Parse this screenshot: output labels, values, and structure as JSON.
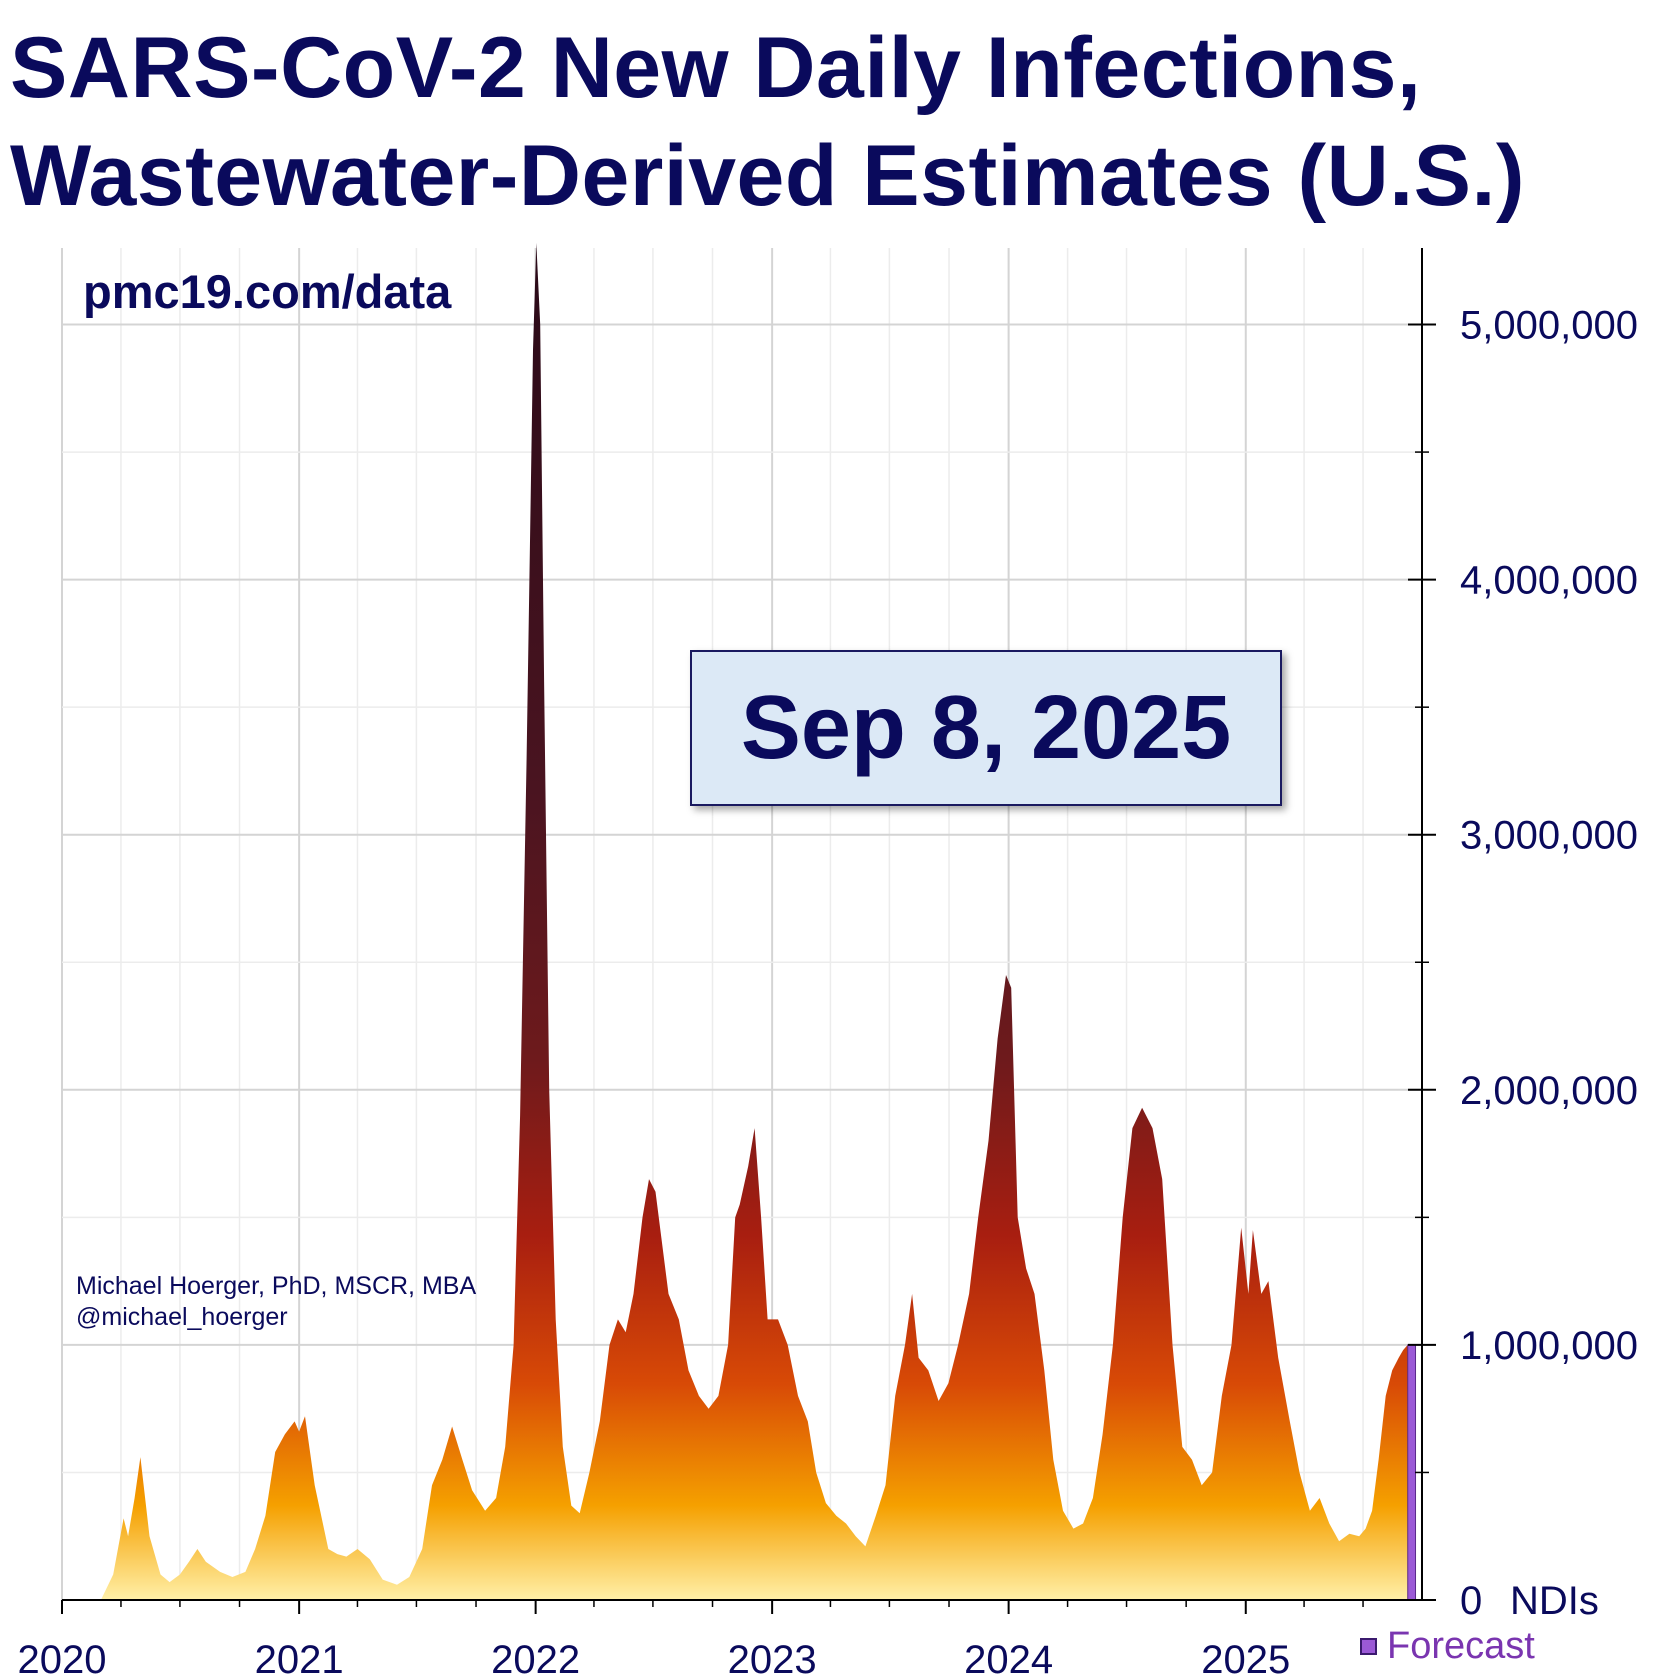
{
  "header": {
    "title_line1": "SARS-CoV-2 New Daily Infections,",
    "title_line2": "Wastewater-Derived Estimates (U.S.)"
  },
  "source_label": "pmc19.com/data",
  "date_label": "Sep 8, 2025",
  "credit": {
    "name": "Michael Hoerger, PhD, MSCR, MBA",
    "handle": "@michael_hoerger"
  },
  "legend": {
    "forecast_label": "Forecast",
    "forecast_color": "#9b59d6"
  },
  "colors": {
    "title": "#0a0a5c",
    "fill_top": "#3d1020",
    "fill_mid": "#c02a0c",
    "fill_low": "#f08a0a",
    "fill_base": "#ffe48a"
  },
  "chart_data": {
    "type": "area",
    "title": "SARS-CoV-2 New Daily Infections, Wastewater-Derived Estimates (U.S.)",
    "xlabel": "",
    "ylabel": "",
    "y_axis_position": "right",
    "y_unit_label": "NDIs",
    "xlim": [
      "2020-01-01",
      "2025-09-30"
    ],
    "ylim": [
      0,
      5300000
    ],
    "x_ticks": [
      {
        "x": "2020-01-01",
        "label": "2020"
      },
      {
        "x": "2021-01-01",
        "label": "2021"
      },
      {
        "x": "2022-01-01",
        "label": "2022"
      },
      {
        "x": "2023-01-01",
        "label": "2023"
      },
      {
        "x": "2024-01-01",
        "label": "2024"
      },
      {
        "x": "2025-01-01",
        "label": "2025"
      }
    ],
    "y_ticks": [
      {
        "y": 0,
        "label": "0"
      },
      {
        "y": 1000000,
        "label": "1,000,000"
      },
      {
        "y": 2000000,
        "label": "2,000,000"
      },
      {
        "y": 3000000,
        "label": "3,000,000"
      },
      {
        "y": 4000000,
        "label": "4,000,000"
      },
      {
        "y": 5000000,
        "label": "5,000,000"
      }
    ],
    "grid": true,
    "series": [
      {
        "points": [
          [
            "2020-03-01",
            0
          ],
          [
            "2020-03-20",
            100000
          ],
          [
            "2020-04-05",
            320000
          ],
          [
            "2020-04-12",
            250000
          ],
          [
            "2020-04-22",
            400000
          ],
          [
            "2020-05-01",
            560000
          ],
          [
            "2020-05-15",
            250000
          ],
          [
            "2020-06-01",
            100000
          ],
          [
            "2020-06-15",
            70000
          ],
          [
            "2020-07-01",
            100000
          ],
          [
            "2020-07-15",
            150000
          ],
          [
            "2020-07-28",
            200000
          ],
          [
            "2020-08-10",
            150000
          ],
          [
            "2020-09-01",
            110000
          ],
          [
            "2020-09-20",
            90000
          ],
          [
            "2020-10-10",
            110000
          ],
          [
            "2020-10-25",
            200000
          ],
          [
            "2020-11-10",
            330000
          ],
          [
            "2020-11-25",
            580000
          ],
          [
            "2020-12-10",
            650000
          ],
          [
            "2020-12-25",
            700000
          ],
          [
            "2021-01-01",
            660000
          ],
          [
            "2021-01-10",
            720000
          ],
          [
            "2021-01-25",
            450000
          ],
          [
            "2021-02-15",
            200000
          ],
          [
            "2021-03-01",
            180000
          ],
          [
            "2021-03-15",
            170000
          ],
          [
            "2021-04-01",
            200000
          ],
          [
            "2021-04-20",
            160000
          ],
          [
            "2021-05-10",
            80000
          ],
          [
            "2021-06-01",
            60000
          ],
          [
            "2021-06-20",
            90000
          ],
          [
            "2021-07-10",
            200000
          ],
          [
            "2021-07-25",
            450000
          ],
          [
            "2021-08-10",
            550000
          ],
          [
            "2021-08-25",
            680000
          ],
          [
            "2021-09-10",
            550000
          ],
          [
            "2021-09-25",
            430000
          ],
          [
            "2021-10-15",
            350000
          ],
          [
            "2021-11-01",
            400000
          ],
          [
            "2021-11-15",
            600000
          ],
          [
            "2021-11-28",
            1000000
          ],
          [
            "2021-12-08",
            1900000
          ],
          [
            "2021-12-18",
            3300000
          ],
          [
            "2021-12-28",
            4900000
          ],
          [
            "2022-01-02",
            5320000
          ],
          [
            "2022-01-08",
            5000000
          ],
          [
            "2022-01-14",
            3600000
          ],
          [
            "2022-01-22",
            2000000
          ],
          [
            "2022-02-01",
            1100000
          ],
          [
            "2022-02-12",
            600000
          ],
          [
            "2022-02-25",
            370000
          ],
          [
            "2022-03-10",
            340000
          ],
          [
            "2022-03-25",
            500000
          ],
          [
            "2022-04-10",
            700000
          ],
          [
            "2022-04-25",
            1000000
          ],
          [
            "2022-05-08",
            1100000
          ],
          [
            "2022-05-20",
            1050000
          ],
          [
            "2022-06-01",
            1200000
          ],
          [
            "2022-06-15",
            1500000
          ],
          [
            "2022-06-25",
            1650000
          ],
          [
            "2022-07-05",
            1600000
          ],
          [
            "2022-07-15",
            1400000
          ],
          [
            "2022-07-25",
            1200000
          ],
          [
            "2022-08-10",
            1100000
          ],
          [
            "2022-08-25",
            900000
          ],
          [
            "2022-09-10",
            800000
          ],
          [
            "2022-09-25",
            750000
          ],
          [
            "2022-10-10",
            800000
          ],
          [
            "2022-10-25",
            1000000
          ],
          [
            "2022-11-05",
            1500000
          ],
          [
            "2022-11-12",
            1550000
          ],
          [
            "2022-11-25",
            1700000
          ],
          [
            "2022-12-05",
            1850000
          ],
          [
            "2022-12-15",
            1500000
          ],
          [
            "2022-12-25",
            1100000
          ],
          [
            "2023-01-10",
            1100000
          ],
          [
            "2023-01-25",
            1000000
          ],
          [
            "2023-02-10",
            800000
          ],
          [
            "2023-02-25",
            700000
          ],
          [
            "2023-03-10",
            500000
          ],
          [
            "2023-03-25",
            380000
          ],
          [
            "2023-04-10",
            330000
          ],
          [
            "2023-04-25",
            300000
          ],
          [
            "2023-05-10",
            250000
          ],
          [
            "2023-05-25",
            210000
          ],
          [
            "2023-06-10",
            330000
          ],
          [
            "2023-06-25",
            450000
          ],
          [
            "2023-07-10",
            800000
          ],
          [
            "2023-07-25",
            1000000
          ],
          [
            "2023-08-05",
            1200000
          ],
          [
            "2023-08-15",
            950000
          ],
          [
            "2023-08-30",
            900000
          ],
          [
            "2023-09-15",
            780000
          ],
          [
            "2023-09-30",
            850000
          ],
          [
            "2023-10-15",
            1000000
          ],
          [
            "2023-11-01",
            1200000
          ],
          [
            "2023-11-15",
            1500000
          ],
          [
            "2023-12-01",
            1800000
          ],
          [
            "2023-12-15",
            2200000
          ],
          [
            "2023-12-28",
            2450000
          ],
          [
            "2024-01-05",
            2400000
          ],
          [
            "2024-01-15",
            1500000
          ],
          [
            "2024-01-28",
            1300000
          ],
          [
            "2024-02-10",
            1200000
          ],
          [
            "2024-02-25",
            900000
          ],
          [
            "2024-03-10",
            550000
          ],
          [
            "2024-03-25",
            350000
          ],
          [
            "2024-04-10",
            280000
          ],
          [
            "2024-04-25",
            300000
          ],
          [
            "2024-05-10",
            400000
          ],
          [
            "2024-05-25",
            650000
          ],
          [
            "2024-06-10",
            1000000
          ],
          [
            "2024-06-25",
            1500000
          ],
          [
            "2024-07-10",
            1850000
          ],
          [
            "2024-07-25",
            1930000
          ],
          [
            "2024-08-10",
            1850000
          ],
          [
            "2024-08-25",
            1650000
          ],
          [
            "2024-09-10",
            1000000
          ],
          [
            "2024-09-25",
            600000
          ],
          [
            "2024-10-10",
            550000
          ],
          [
            "2024-10-25",
            450000
          ],
          [
            "2024-11-10",
            500000
          ],
          [
            "2024-11-25",
            800000
          ],
          [
            "2024-12-10",
            1000000
          ],
          [
            "2024-12-25",
            1460000
          ],
          [
            "2025-01-05",
            1200000
          ],
          [
            "2025-01-12",
            1450000
          ],
          [
            "2025-01-25",
            1200000
          ],
          [
            "2025-02-05",
            1250000
          ],
          [
            "2025-02-20",
            950000
          ],
          [
            "2025-03-10",
            700000
          ],
          [
            "2025-03-25",
            500000
          ],
          [
            "2025-04-10",
            350000
          ],
          [
            "2025-04-25",
            400000
          ],
          [
            "2025-05-10",
            300000
          ],
          [
            "2025-05-25",
            230000
          ],
          [
            "2025-06-10",
            260000
          ],
          [
            "2025-06-25",
            250000
          ],
          [
            "2025-07-05",
            280000
          ],
          [
            "2025-07-15",
            350000
          ],
          [
            "2025-07-25",
            550000
          ],
          [
            "2025-08-05",
            800000
          ],
          [
            "2025-08-15",
            900000
          ],
          [
            "2025-08-25",
            950000
          ],
          [
            "2025-09-01",
            980000
          ],
          [
            "2025-09-08",
            1000000
          ]
        ]
      }
    ],
    "forecast": {
      "start": "2025-09-08",
      "end": "2025-09-20",
      "value": 1000000
    }
  }
}
